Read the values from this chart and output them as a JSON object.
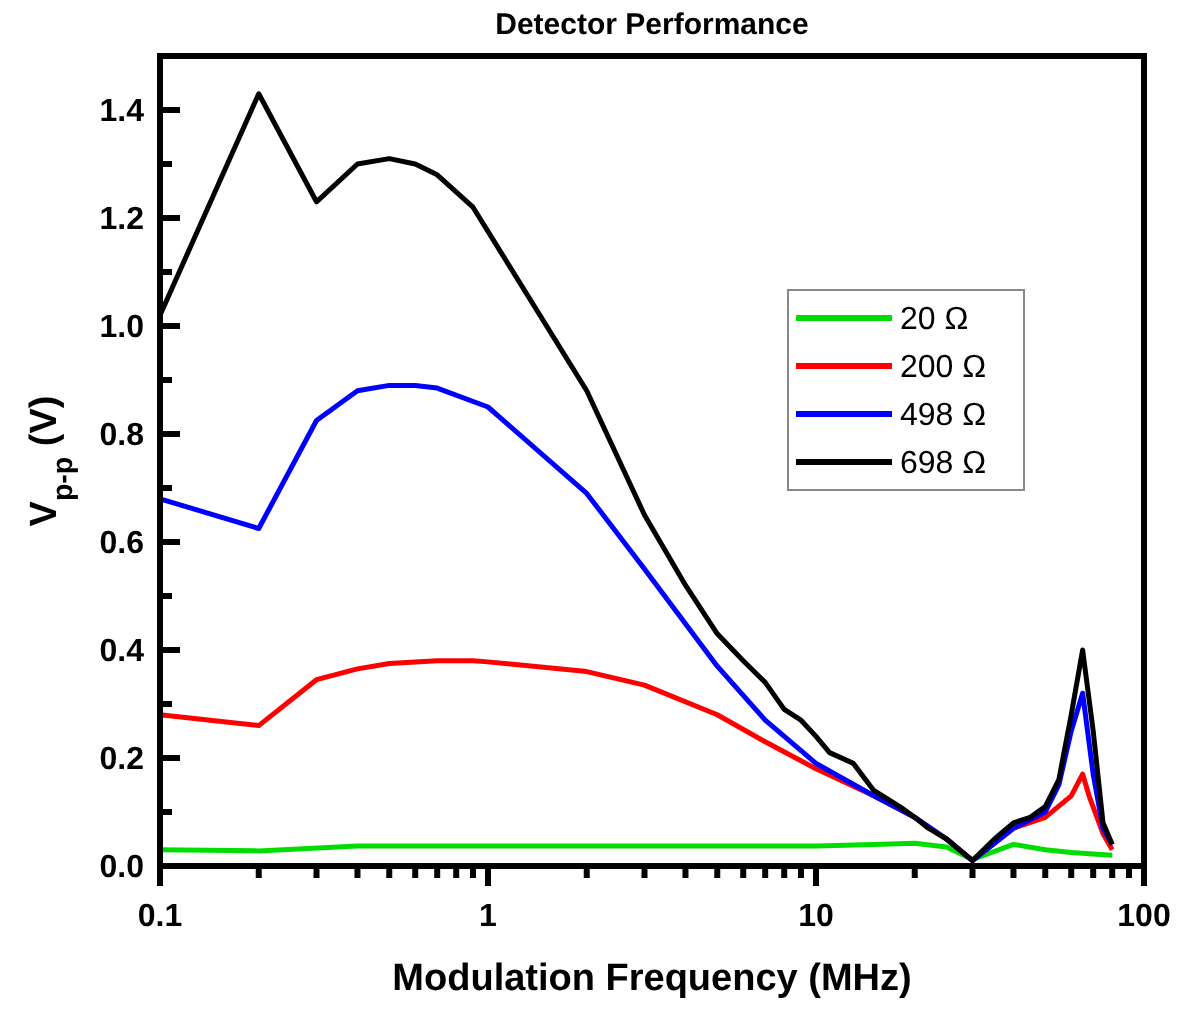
{
  "chart_data": {
    "type": "line",
    "title": "Detector Performance",
    "xlabel": "Modulation Frequency (MHz)",
    "ylabel": "V$_{p-p}$ (V)",
    "log": "x",
    "xlim": [
      0.1,
      100
    ],
    "xticks": [
      0.1,
      {
        "value": 0.2,
        "label": null
      },
      {
        "value": 0.3,
        "label": null
      },
      {
        "value": 0.4,
        "label": null
      },
      {
        "value": 0.5,
        "label": null
      },
      {
        "value": 0.6,
        "label": null
      },
      {
        "value": 0.7,
        "label": null
      },
      {
        "value": 0.8,
        "label": null
      },
      {
        "value": 0.9,
        "label": null
      },
      1,
      {
        "value": 2,
        "label": null
      },
      {
        "value": 3,
        "label": null
      },
      {
        "value": 4,
        "label": null
      },
      {
        "value": 5,
        "label": null
      },
      {
        "value": 6,
        "label": null
      },
      {
        "value": 7,
        "label": null
      },
      {
        "value": 8,
        "label": null
      },
      {
        "value": 9,
        "label": null
      },
      10,
      {
        "value": 20,
        "label": null
      },
      {
        "value": 30,
        "label": null
      },
      {
        "value": 40,
        "label": null
      },
      {
        "value": 50,
        "label": null
      },
      {
        "value": 60,
        "label": null
      },
      {
        "value": 70,
        "label": null
      },
      {
        "value": 80,
        "label": null
      },
      {
        "value": 90,
        "label": null
      },
      100
    ],
    "ylim": [
      0,
      1.5
    ],
    "yticks": [
      {
        "value": 0,
        "label": "0.0"
      },
      {
        "value": 0.1,
        "label": null
      },
      {
        "value": 0.2,
        "label": "0.2"
      },
      {
        "value": 0.3,
        "label": null
      },
      {
        "value": 0.4,
        "label": "0.4"
      },
      {
        "value": 0.5,
        "label": null
      },
      {
        "value": 0.6,
        "label": "0.6"
      },
      {
        "value": 0.7,
        "label": null
      },
      {
        "value": 0.8,
        "label": "0.8"
      },
      {
        "value": 0.9,
        "label": null
      },
      {
        "value": 1.0,
        "label": "1.0"
      },
      {
        "value": 1.1,
        "label": null
      },
      {
        "value": 1.2,
        "label": "1.2"
      },
      {
        "value": 1.3,
        "label": null
      },
      {
        "value": 1.4,
        "label": "1.4"
      }
    ],
    "grid": false,
    "legend": "top right",
    "line_style": "solid",
    "series": [
      {
        "name": "20 Ω",
        "color": "#00dd00",
        "x": [
          0.1,
          0.2,
          0.4,
          1,
          10,
          15,
          20,
          25,
          30,
          40,
          50,
          60,
          80
        ],
        "values": [
          0.03,
          0.028,
          0.037,
          0.037,
          0.037,
          0.04,
          0.042,
          0.035,
          0.012,
          0.04,
          0.03,
          0.025,
          0.02
        ]
      },
      {
        "name": "200 Ω",
        "color": "#ff0000",
        "x": [
          0.1,
          0.2,
          0.3,
          0.4,
          0.5,
          0.7,
          0.9,
          1,
          2,
          3,
          5,
          7,
          10,
          15,
          20,
          25,
          30,
          40,
          50,
          60,
          65,
          68,
          75,
          80
        ],
        "values": [
          0.28,
          0.26,
          0.345,
          0.365,
          0.375,
          0.38,
          0.38,
          0.378,
          0.36,
          0.335,
          0.28,
          0.23,
          0.18,
          0.13,
          0.09,
          0.05,
          0.01,
          0.07,
          0.09,
          0.13,
          0.17,
          0.13,
          0.06,
          0.03
        ]
      },
      {
        "name": "498 Ω",
        "color": "#0000ff",
        "x": [
          0.1,
          0.2,
          0.3,
          0.4,
          0.5,
          0.6,
          0.7,
          1,
          2,
          3,
          5,
          7,
          10,
          15,
          20,
          25,
          30,
          40,
          50,
          55,
          60,
          65,
          70,
          75,
          80
        ],
        "values": [
          0.68,
          0.625,
          0.825,
          0.88,
          0.89,
          0.89,
          0.885,
          0.85,
          0.69,
          0.55,
          0.37,
          0.27,
          0.19,
          0.13,
          0.09,
          0.05,
          0.01,
          0.07,
          0.1,
          0.15,
          0.25,
          0.32,
          0.17,
          0.07,
          0.04
        ]
      },
      {
        "name": "698 Ω",
        "color": "#000000",
        "x": [
          0.1,
          0.2,
          0.3,
          0.4,
          0.5,
          0.6,
          0.7,
          0.9,
          2,
          3,
          4,
          5,
          6,
          7,
          8,
          9,
          10,
          11,
          13,
          15,
          18,
          20,
          22,
          25,
          30,
          35,
          40,
          45,
          50,
          55,
          60,
          65,
          70,
          75,
          80
        ],
        "values": [
          1.02,
          1.43,
          1.23,
          1.3,
          1.31,
          1.3,
          1.28,
          1.22,
          0.88,
          0.65,
          0.52,
          0.43,
          0.38,
          0.34,
          0.29,
          0.27,
          0.24,
          0.21,
          0.19,
          0.14,
          0.11,
          0.09,
          0.07,
          0.05,
          0.01,
          0.05,
          0.08,
          0.09,
          0.11,
          0.16,
          0.28,
          0.4,
          0.25,
          0.08,
          0.04
        ]
      }
    ]
  }
}
